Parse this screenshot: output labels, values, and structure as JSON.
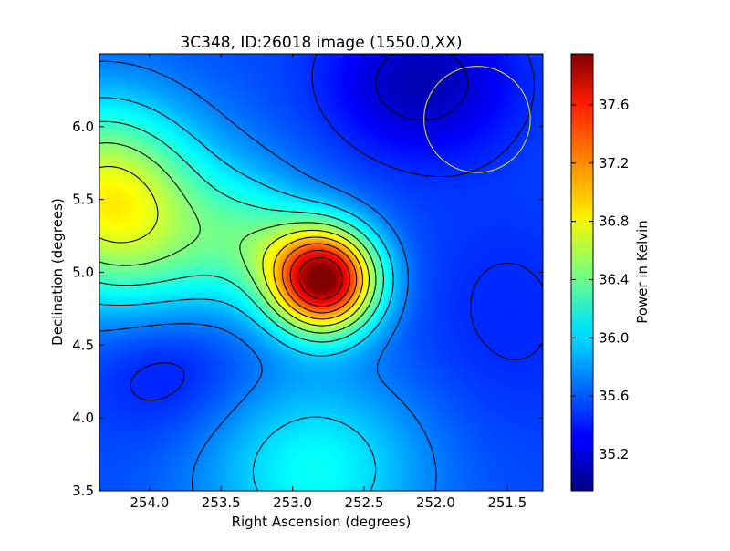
{
  "chart_data": {
    "type": "heatmap",
    "title": "3C348, ID:26018 image (1550.0,XX)",
    "xlabel": "Right Ascension (degrees)",
    "ylabel": "Declination (degrees)",
    "xlim": [
      254.35,
      251.25
    ],
    "ylim": [
      3.5,
      6.5
    ],
    "x_reversed": true,
    "x_ticks": [
      "254.0",
      "253.5",
      "253.0",
      "252.5",
      "252.0",
      "251.5"
    ],
    "x_tick_values": [
      254.0,
      253.5,
      253.0,
      252.5,
      252.0,
      251.5
    ],
    "y_ticks": [
      "3.5",
      "4.0",
      "4.5",
      "5.0",
      "5.5",
      "6.0"
    ],
    "y_tick_values": [
      3.5,
      4.0,
      4.5,
      5.0,
      5.5,
      6.0
    ],
    "colorbar": {
      "label": "Power in Kelvin",
      "min": 34.95,
      "max": 37.95,
      "ticks": [
        "35.2",
        "35.6",
        "36.0",
        "36.4",
        "36.8",
        "37.2",
        "37.6"
      ],
      "tick_values": [
        35.2,
        35.6,
        36.0,
        36.4,
        36.8,
        37.2,
        37.6
      ],
      "colormap": "jet"
    },
    "background_level": 35.55,
    "sources": [
      {
        "ra": 252.78,
        "dec": 4.95,
        "amplitude": 2.35,
        "sigma_ra": 0.26,
        "sigma_dec": 0.25
      },
      {
        "ra": 253.25,
        "dec": 5.22,
        "amplitude": 0.35,
        "sigma_ra": 0.28,
        "sigma_dec": 0.28
      },
      {
        "ra": 254.35,
        "dec": 5.55,
        "amplitude": 1.05,
        "sigma_ra": 0.45,
        "sigma_dec": 0.45
      },
      {
        "ra": 253.8,
        "dec": 5.2,
        "amplitude": 0.55,
        "sigma_ra": 0.55,
        "sigma_dec": 0.45
      },
      {
        "ra": 252.85,
        "dec": 3.65,
        "amplitude": 0.55,
        "sigma_ra": 0.55,
        "sigma_dec": 0.45
      },
      {
        "ra": 252.1,
        "dec": 6.3,
        "amplitude": -0.45,
        "sigma_ra": 0.45,
        "sigma_dec": 0.35
      },
      {
        "ra": 253.85,
        "dec": 4.4,
        "amplitude": -0.25,
        "sigma_ra": 0.4,
        "sigma_dec": 0.35
      },
      {
        "ra": 251.5,
        "dec": 4.7,
        "amplitude": -0.12,
        "sigma_ra": 0.5,
        "sigma_dec": 0.6
      }
    ],
    "contour_levels": [
      35.2,
      35.45,
      35.7,
      35.95,
      36.2,
      36.45,
      36.7,
      36.95,
      37.2,
      37.45,
      37.7
    ],
    "beam_circle": {
      "ra": 251.71,
      "dec": 6.05,
      "radius_deg": 0.365,
      "color": "#c8c832"
    },
    "contour_color": "#000000"
  }
}
